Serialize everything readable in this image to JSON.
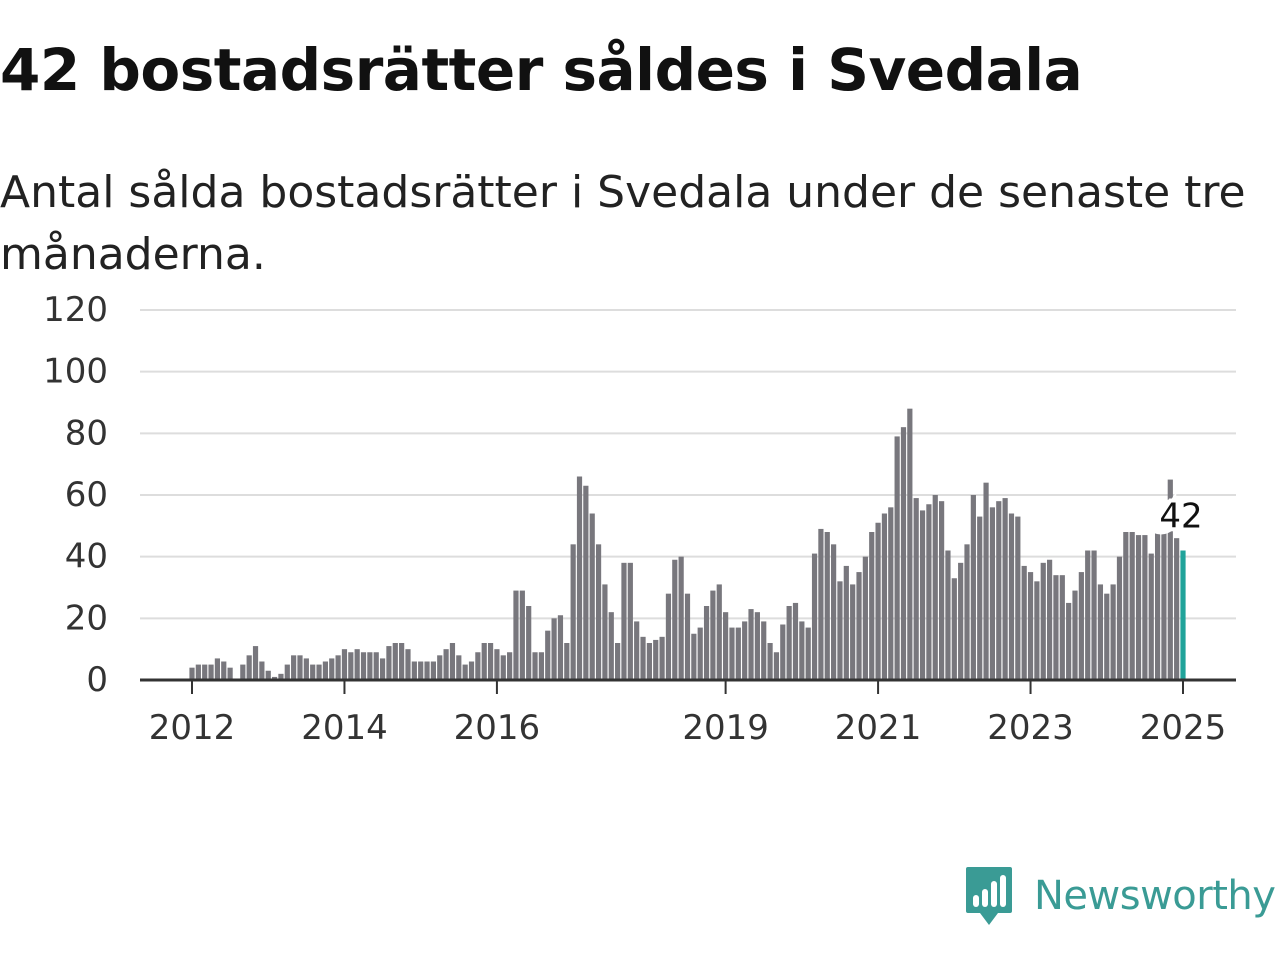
{
  "title": "42 bostadsrätter såldes i Svedala",
  "subtitle": "Antal sålda bostadsrätter i Svedala under de senaste tre månaderna.",
  "brand": {
    "name": "Newsworthy",
    "color": "#3a9b95",
    "icon": "newsworthy-chart-logo-icon"
  },
  "colors": {
    "bar": "#78777d",
    "highlight": "#20a39a",
    "grid": "#dddddd",
    "axis": "#333333"
  },
  "chart_data": {
    "type": "bar",
    "title": "42 bostadsrätter såldes i Svedala",
    "subtitle": "Antal sålda bostadsrätter i Svedala under de senaste tre månaderna.",
    "xlabel": "",
    "ylabel": "",
    "ylim": [
      0,
      120
    ],
    "y_ticks": [
      0,
      20,
      40,
      60,
      80,
      100,
      120
    ],
    "x_ticks": [
      {
        "label": "2012",
        "date": "2012-01"
      },
      {
        "label": "2014",
        "date": "2014-01"
      },
      {
        "label": "2016",
        "date": "2016-01"
      },
      {
        "label": "2019",
        "date": "2019-01"
      },
      {
        "label": "2021",
        "date": "2021-01"
      },
      {
        "label": "2023",
        "date": "2023-01"
      },
      {
        "label": "2025",
        "date": "2025-01"
      }
    ],
    "grid": true,
    "legend": "none",
    "start_month": "2012-01",
    "values": [
      4,
      5,
      5,
      5,
      7,
      6,
      4,
      0,
      5,
      8,
      11,
      6,
      3,
      1,
      2,
      5,
      8,
      8,
      7,
      5,
      5,
      6,
      7,
      8,
      10,
      9,
      10,
      9,
      9,
      9,
      7,
      11,
      12,
      12,
      10,
      6,
      6,
      6,
      6,
      8,
      10,
      12,
      8,
      5,
      6,
      9,
      12,
      12,
      10,
      8,
      9,
      29,
      29,
      24,
      9,
      9,
      16,
      20,
      21,
      12,
      44,
      66,
      63,
      54,
      44,
      31,
      22,
      12,
      38,
      38,
      19,
      14,
      12,
      13,
      14,
      28,
      39,
      40,
      28,
      15,
      17,
      24,
      29,
      31,
      22,
      17,
      17,
      19,
      23,
      22,
      19,
      12,
      9,
      18,
      24,
      25,
      19,
      17,
      41,
      49,
      48,
      44,
      32,
      37,
      31,
      35,
      40,
      48,
      51,
      54,
      56,
      79,
      82,
      88,
      59,
      55,
      57,
      60,
      58,
      42,
      33,
      38,
      44,
      60,
      53,
      64,
      56,
      58,
      59,
      54,
      53,
      37,
      35,
      32,
      38,
      39,
      34,
      34,
      25,
      29,
      35,
      42,
      42,
      31,
      28,
      31,
      40,
      48,
      48,
      47,
      47,
      41,
      52,
      51,
      65,
      46,
      42
    ],
    "highlight_last": true,
    "annotation": {
      "text": "42"
    }
  }
}
